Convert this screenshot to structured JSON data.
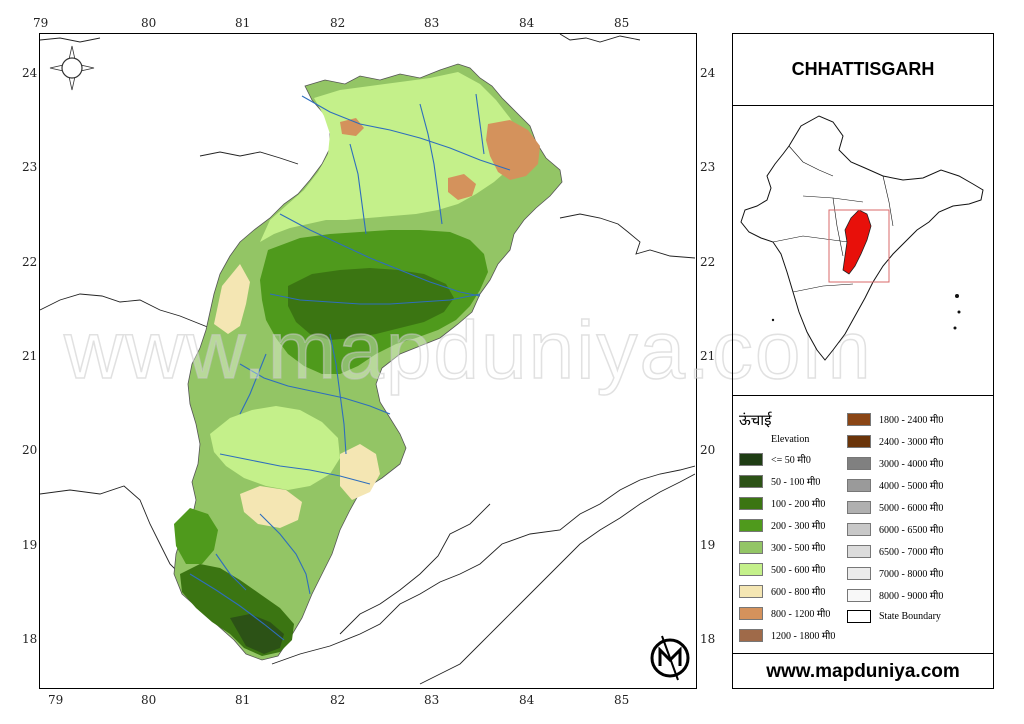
{
  "title": "CHHATTISGARH",
  "legend": {
    "title": "ऊंचाई",
    "subtitle": "Elevation",
    "items": [
      {
        "label": "<= 50 मी0",
        "color": "#1f3d14"
      },
      {
        "label": "50 - 100 मी0",
        "color": "#2c5216"
      },
      {
        "label": "100 - 200 मी0",
        "color": "#3b7512"
      },
      {
        "label": "200 - 300 मी0",
        "color": "#4f9a1c"
      },
      {
        "label": "300 - 500 मी0",
        "color": "#93c565"
      },
      {
        "label": "500 - 600 मी0",
        "color": "#c4f08a"
      },
      {
        "label": "600 - 800 मी0",
        "color": "#f4e6b3"
      },
      {
        "label": "800 - 1200 मी0",
        "color": "#d4925c"
      },
      {
        "label": "1200 - 1800 मी0",
        "color": "#9f6a49"
      },
      {
        "label": "1800 - 2400 मी0",
        "color": "#8a4515"
      },
      {
        "label": "2400 - 3000 मी0",
        "color": "#6a3409"
      },
      {
        "label": "3000 - 4000 मी0",
        "color": "#808080"
      },
      {
        "label": "4000 - 5000 मी0",
        "color": "#9a9a9a"
      },
      {
        "label": "5000 - 6000 मी0",
        "color": "#b0b0b0"
      },
      {
        "label": "6000 - 6500 मी0",
        "color": "#c8c8c8"
      },
      {
        "label": "6500 - 7000 मी0",
        "color": "#dcdcdc"
      },
      {
        "label": "7000 - 8000 मी0",
        "color": "#ececec"
      },
      {
        "label": "8000 - 9000 मी0",
        "color": "#f8f8f8"
      },
      {
        "label": "State Boundary",
        "color": "#ffffff"
      }
    ]
  },
  "axes": {
    "longitudes": [
      "79",
      "80",
      "81",
      "82",
      "83",
      "84",
      "85"
    ],
    "latitudes": [
      "24",
      "23",
      "22",
      "21",
      "20",
      "19",
      "18"
    ]
  },
  "watermark": "www.mapduniya.com",
  "footer": "www.mapduniya.com",
  "colors": {
    "river": "#2e6ebd",
    "highlight_state": "#e8100a",
    "inset_box": "#d86a6a"
  }
}
